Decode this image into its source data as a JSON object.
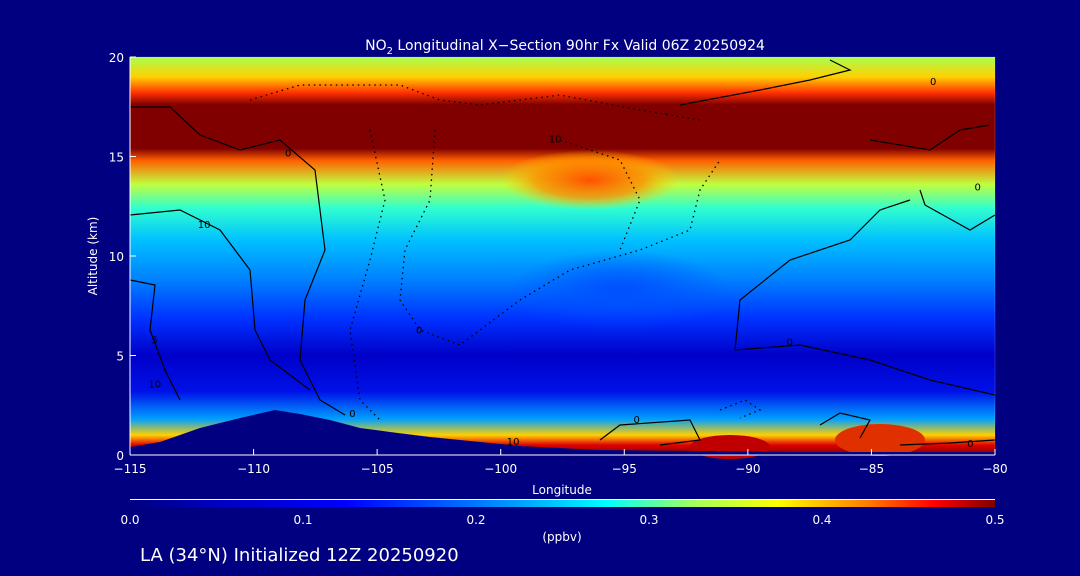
{
  "chart_data": {
    "type": "heatmap",
    "title_prefix": "NO",
    "title_subscript": "2",
    "title_suffix": " Longitudinal X−Section 90hr  Fx Valid 06Z 20250924",
    "xlabel": "Longitude",
    "ylabel": "Altitude (km)",
    "xlim": [
      -115,
      -80
    ],
    "ylim": [
      0,
      20
    ],
    "x_ticks": [
      "−115",
      "−110",
      "−105",
      "−100",
      "−95",
      "−90",
      "−85",
      "−80"
    ],
    "x_tick_values": [
      -115,
      -110,
      -105,
      -100,
      -95,
      -90,
      -85,
      -80
    ],
    "y_ticks": [
      "0",
      "5",
      "10",
      "15",
      "20"
    ],
    "y_tick_values": [
      0,
      5,
      10,
      15,
      20
    ],
    "colorbar": {
      "label": "(ppbv)",
      "range": [
        0.0,
        0.5
      ],
      "ticks": [
        "0.0",
        "0.1",
        "0.2",
        "0.3",
        "0.4",
        "0.5"
      ],
      "tick_values": [
        0.0,
        0.1,
        0.2,
        0.3,
        0.4,
        0.5
      ]
    },
    "vertical_profile_approx": [
      {
        "alt": 20,
        "value": 0.3
      },
      {
        "alt": 18.5,
        "value": 0.4
      },
      {
        "alt": 17.5,
        "value": 0.5
      },
      {
        "alt": 15.2,
        "value": 0.5
      },
      {
        "alt": 14.5,
        "value": 0.38
      },
      {
        "alt": 13,
        "value": 0.27
      },
      {
        "alt": 11.5,
        "value": 0.2
      },
      {
        "alt": 9,
        "value": 0.15
      },
      {
        "alt": 7,
        "value": 0.1
      },
      {
        "alt": 5,
        "value": 0.05
      },
      {
        "alt": 3,
        "value": 0.07
      },
      {
        "alt": 1.5,
        "value": 0.2
      },
      {
        "alt": 0.6,
        "value": 0.45
      }
    ],
    "contour_labels": [
      {
        "text": "0",
        "lon": -82.5,
        "alt": 18.8
      },
      {
        "text": "10",
        "lon": -97.8,
        "alt": 15.9
      },
      {
        "text": "0",
        "lon": -108.6,
        "alt": 15.2
      },
      {
        "text": "0",
        "lon": -80.7,
        "alt": 13.5
      },
      {
        "text": "10",
        "lon": -112,
        "alt": 11.6
      },
      {
        "text": "0",
        "lon": -103.3,
        "alt": 6.3
      },
      {
        "text": "0",
        "lon": -88.3,
        "alt": 5.7
      },
      {
        "text": "5",
        "lon": -114,
        "alt": 5.8
      },
      {
        "text": "10",
        "lon": -114,
        "alt": 3.6
      },
      {
        "text": "0",
        "lon": -106,
        "alt": 2.1
      },
      {
        "text": "0",
        "lon": -94.5,
        "alt": 1.8
      },
      {
        "text": "0",
        "lon": -81,
        "alt": 0.6
      },
      {
        "text": "10",
        "lon": -99.5,
        "alt": 0.7
      }
    ]
  },
  "footer": {
    "caption": "LA (34°N) Initialized 12Z 20250920"
  },
  "colors": {
    "background": "#000080",
    "max": "#800000",
    "min": "#000080"
  }
}
